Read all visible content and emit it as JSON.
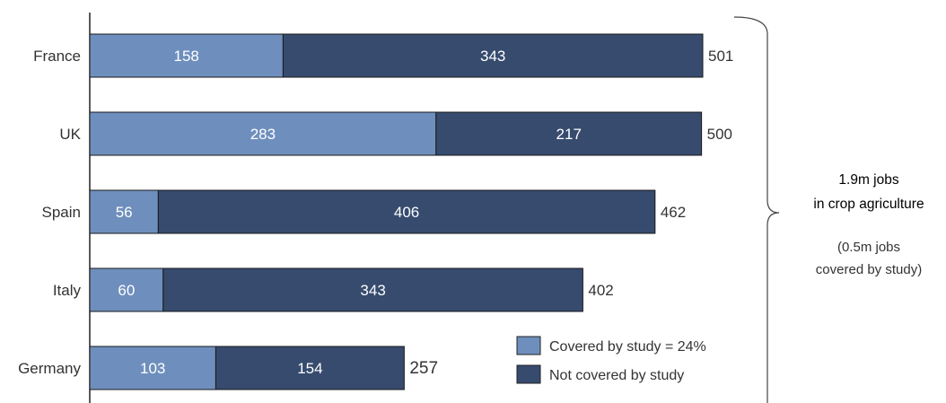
{
  "chart_data": {
    "type": "bar",
    "orientation": "horizontal",
    "stacked": true,
    "categories": [
      "France",
      "UK",
      "Spain",
      "Italy",
      "Germany"
    ],
    "series": [
      {
        "name": "Covered by study = 24%",
        "values": [
          158,
          283,
          56,
          60,
          103
        ],
        "color": "#6e8fbd"
      },
      {
        "name": "Not covered by study",
        "values": [
          343,
          217,
          406,
          343,
          154
        ],
        "color": "#364b6e"
      }
    ],
    "totals": [
      501,
      500,
      462,
      402,
      257
    ],
    "xlim": [
      0,
      501
    ],
    "grid": false,
    "legend_position": "bottom-right",
    "annotation": {
      "line1": "1.9m jobs",
      "line2": "in crop agriculture",
      "line3": "(0.5m jobs",
      "line4": "covered by study)"
    }
  }
}
